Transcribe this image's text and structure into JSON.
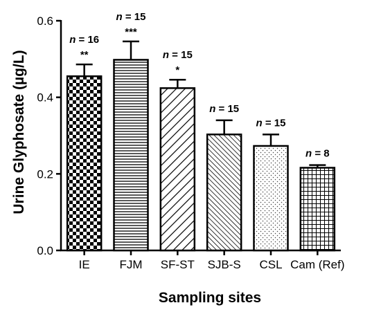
{
  "chart_data": {
    "type": "bar",
    "title": "",
    "xlabel": "Sampling sites",
    "ylabel": "Urine Glyphosate (µg/L)",
    "ylim": [
      0,
      0.6
    ],
    "yticks": [
      "0.0",
      "0.2",
      "0.4",
      "0.6"
    ],
    "categories": [
      "IE",
      "FJM",
      "SF-ST",
      "SJB-S",
      "CSL",
      "Cam (Ref)"
    ],
    "values": [
      0.455,
      0.498,
      0.424,
      0.303,
      0.273,
      0.216
    ],
    "error": [
      0.031,
      0.048,
      0.022,
      0.037,
      0.03,
      0.007
    ],
    "n_labels": [
      "16",
      "15",
      "15",
      "15",
      "15",
      "8"
    ],
    "significance": [
      "**",
      "***",
      "*",
      "",
      "",
      ""
    ],
    "patterns": [
      "checkerboard",
      "horizontal-lines",
      "back-diagonal",
      "diagonal",
      "dots",
      "grid"
    ],
    "grid": false,
    "legend": "none"
  }
}
